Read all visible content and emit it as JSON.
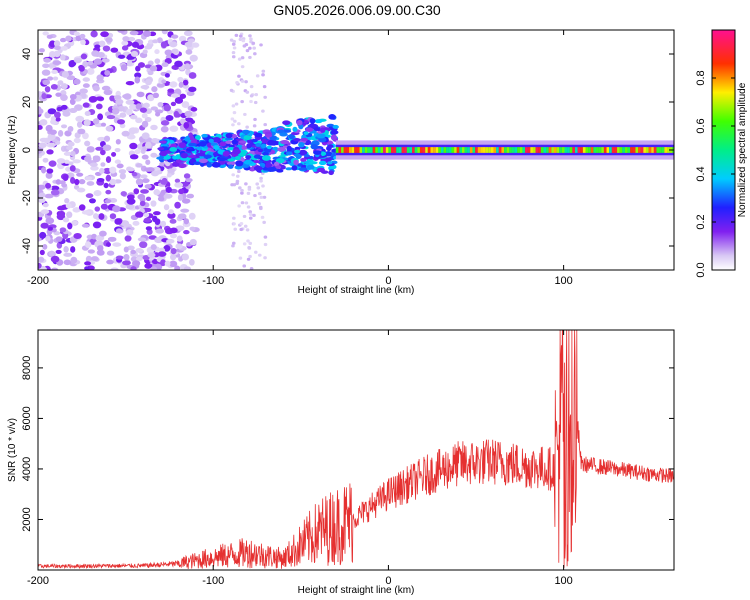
{
  "title": "GN05.2026.006.09.00.C30",
  "chart_data": [
    {
      "type": "heatmap",
      "name": "spectrogram",
      "xlabel": "Height of straight line (km)",
      "ylabel": "Frequency (Hz)",
      "xlim": [
        -200,
        163
      ],
      "ylim": [
        -50,
        50
      ],
      "xticks": [
        -200,
        -100,
        0,
        100
      ],
      "yticks": [
        -40,
        -20,
        0,
        20,
        40
      ],
      "colorbar": {
        "label": "Normalized spectral amplitude",
        "range": [
          0,
          1
        ],
        "ticks": [
          0.0,
          0.2,
          0.4,
          0.6,
          0.8
        ],
        "tick_labels": [
          "0.0",
          "0.2",
          "0.4",
          "0.6",
          "0.8"
        ]
      },
      "features": [
        {
          "x_range": [
            -200,
            -120
          ],
          "y_range": [
            -50,
            50
          ],
          "amplitude": 0.12,
          "description": "scattered noise"
        },
        {
          "x_range": [
            -120,
            -30
          ],
          "y_range": [
            -15,
            15
          ],
          "amplitude": 0.3,
          "description": "broadening signal"
        },
        {
          "x_range": [
            -30,
            163
          ],
          "y_range": [
            -2,
            2
          ],
          "amplitude": 0.8,
          "description": "narrow carrier line"
        }
      ]
    },
    {
      "type": "line",
      "name": "snr",
      "series": [
        {
          "name": "SNR",
          "color": "#e53030"
        }
      ],
      "xlabel": "Height of straight line (km)",
      "ylabel": "SNR (10 * v/v)",
      "xlim": [
        -200,
        163
      ],
      "ylim": [
        0,
        9500
      ],
      "xticks": [
        -200,
        -100,
        0,
        100
      ],
      "yticks": [
        2000,
        4000,
        6000,
        8000
      ],
      "envelope": {
        "x": [
          -200,
          -140,
          -120,
          -100,
          -80,
          -60,
          -40,
          -20,
          0,
          20,
          40,
          60,
          80,
          95,
          100,
          105,
          110,
          130,
          150,
          163
        ],
        "y": [
          150,
          170,
          250,
          500,
          700,
          450,
          1500,
          2000,
          3000,
          3700,
          4200,
          4300,
          4100,
          4000,
          6000,
          8000,
          4200,
          4000,
          3800,
          3700
        ]
      }
    }
  ]
}
